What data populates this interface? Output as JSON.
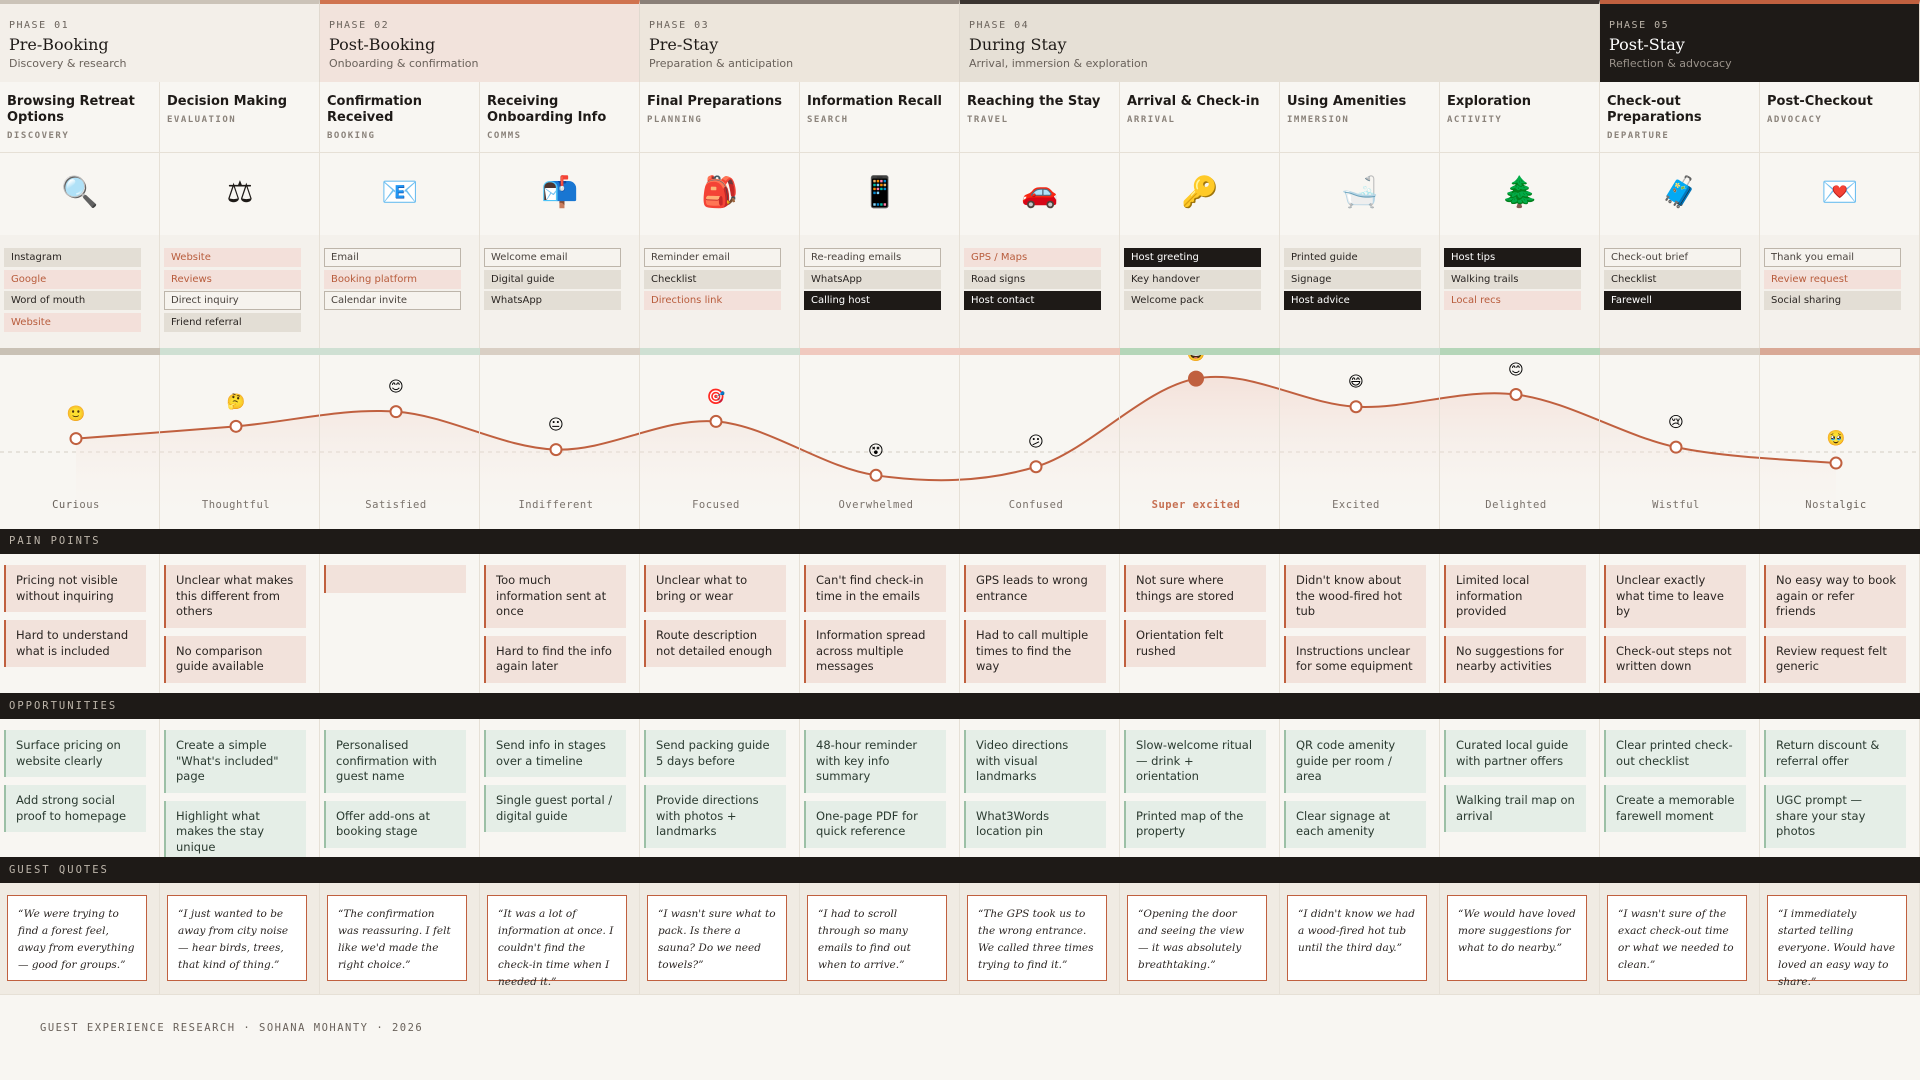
{
  "phases": [
    {
      "number": "PHASE 01",
      "title": "Pre-Booking",
      "subtitle": "Discovery & research",
      "bg": "#f3efe9",
      "accent": "#cbc3b8",
      "theme": "light",
      "steps": [
        {
          "title": "Browsing Retreat Options",
          "tag": "DISCOVERY",
          "icon": "🔍",
          "strip": "#c9c1b5",
          "touchpoints": [
            {
              "label": "Instagram",
              "style": "neutral"
            },
            {
              "label": "Google",
              "style": "accent"
            },
            {
              "label": "Word of mouth",
              "style": "neutral"
            },
            {
              "label": "Website",
              "style": "accent"
            }
          ],
          "emotion": {
            "emoji": "🙂",
            "label": "Curious",
            "level": 42,
            "highlight": false
          },
          "pain_points": [
            "Pricing not visible without inquiring",
            "Hard to understand what is included"
          ],
          "opportunities": [
            "Surface pricing on website clearly",
            "Add strong social proof to homepage"
          ],
          "quote": "“We were trying to find a forest feel, away from everything — good for groups.”"
        },
        {
          "title": "Decision Making",
          "tag": "EVALUATION",
          "icon": "⚖",
          "strip": "#cfe0d3",
          "touchpoints": [
            {
              "label": "Website",
              "style": "accent"
            },
            {
              "label": "Reviews",
              "style": "accent"
            },
            {
              "label": "Direct inquiry",
              "style": "outline"
            },
            {
              "label": "Friend referral",
              "style": "neutral"
            }
          ],
          "emotion": {
            "emoji": "🤔",
            "label": "Thoughtful",
            "level": 52,
            "highlight": false
          },
          "pain_points": [
            "Unclear what makes this different from others",
            "No comparison guide available"
          ],
          "opportunities": [
            "Create a simple \"What's included\" page",
            "Highlight what makes the stay unique"
          ],
          "quote": "“I just wanted to be away from city noise — hear birds, trees, that kind of thing.”"
        }
      ]
    },
    {
      "number": "PHASE 02",
      "title": "Post-Booking",
      "subtitle": "Onboarding & confirmation",
      "bg": "#f2e3dc",
      "accent": "#d0734f",
      "theme": "light",
      "steps": [
        {
          "title": "Confirmation Received",
          "tag": "BOOKING",
          "icon": "📧",
          "strip": "#cfe0d3",
          "touchpoints": [
            {
              "label": "Email",
              "style": "outline"
            },
            {
              "label": "Booking platform",
              "style": "accent"
            },
            {
              "label": "Calendar invite",
              "style": "outline"
            }
          ],
          "emotion": {
            "emoji": "😊",
            "label": "Satisfied",
            "level": 64,
            "highlight": false
          },
          "pain_points": [],
          "opportunities": [
            "Personalised confirmation with guest name",
            "Offer add-ons at booking stage"
          ],
          "quote": "“The confirmation was reassuring. I felt like we'd made the right choice.”"
        },
        {
          "title": "Receiving Onboarding Info",
          "tag": "COMMS",
          "icon": "📬",
          "strip": "#d9cfc4",
          "touchpoints": [
            {
              "label": "Welcome email",
              "style": "outline"
            },
            {
              "label": "Digital guide",
              "style": "neutral"
            },
            {
              "label": "WhatsApp",
              "style": "neutral"
            }
          ],
          "emotion": {
            "emoji": "😐",
            "label": "Indifferent",
            "level": 33,
            "highlight": false
          },
          "pain_points": [
            "Too much information sent at once",
            "Hard to find the info again later"
          ],
          "opportunities": [
            "Send info in stages over a timeline",
            "Single guest portal / digital guide"
          ],
          "quote": "“It was a lot of information at once. I couldn't find the check-in time when I needed it.”"
        }
      ]
    },
    {
      "number": "PHASE 03",
      "title": "Pre-Stay",
      "subtitle": "Preparation & anticipation",
      "bg": "#ede6dc",
      "accent": "#8a8078",
      "theme": "light",
      "steps": [
        {
          "title": "Final Preparations",
          "tag": "PLANNING",
          "icon": "🎒",
          "strip": "#cfe0d3",
          "touchpoints": [
            {
              "label": "Reminder email",
              "style": "outline"
            },
            {
              "label": "Checklist",
              "style": "neutral"
            },
            {
              "label": "Directions link",
              "style": "accent"
            }
          ],
          "emotion": {
            "emoji": "🎯",
            "label": "Focused",
            "level": 56,
            "highlight": false
          },
          "pain_points": [
            "Unclear what to bring or wear",
            "Route description not detailed enough"
          ],
          "opportunities": [
            "Send packing guide 5 days before",
            "Provide directions with photos + landmarks"
          ],
          "quote": "“I wasn't sure what to pack. Is there a sauna? Do we need towels?”"
        },
        {
          "title": "Information Recall",
          "tag": "SEARCH",
          "icon": "📱",
          "strip": "#f0c9bf",
          "touchpoints": [
            {
              "label": "Re-reading emails",
              "style": "outline"
            },
            {
              "label": "WhatsApp",
              "style": "neutral"
            },
            {
              "label": "Calling host",
              "style": "dark"
            }
          ],
          "emotion": {
            "emoji": "😵",
            "label": "Overwhelmed",
            "level": 12,
            "highlight": false
          },
          "pain_points": [
            "Can't find check-in time in the emails",
            "Information spread across multiple messages"
          ],
          "opportunities": [
            "48-hour reminder with key info summary",
            "One-page PDF for quick reference"
          ],
          "quote": "“I had to scroll through so many emails to find out when to arrive.”"
        }
      ]
    },
    {
      "number": "PHASE 04",
      "title": "During Stay",
      "subtitle": "Arrival, immersion & exploration",
      "bg": "#e6e0d6",
      "accent": "#3a3430",
      "theme": "light",
      "steps": [
        {
          "title": "Reaching the Stay",
          "tag": "TRAVEL",
          "icon": "🚗",
          "strip": "#edc6b9",
          "touchpoints": [
            {
              "label": "GPS / Maps",
              "style": "accent"
            },
            {
              "label": "Road signs",
              "style": "neutral"
            },
            {
              "label": "Host contact",
              "style": "dark"
            }
          ],
          "emotion": {
            "emoji": "😕",
            "label": "Confused",
            "level": 19,
            "highlight": false
          },
          "pain_points": [
            "GPS leads to wrong entrance",
            "Had to call multiple times to find the way"
          ],
          "opportunities": [
            "Video directions with visual landmarks",
            "What3Words location pin"
          ],
          "quote": "“The GPS took us to the wrong entrance. We called three times trying to find it.”"
        },
        {
          "title": "Arrival & Check-in",
          "tag": "ARRIVAL",
          "icon": "🔑",
          "strip": "#b5d6b9",
          "touchpoints": [
            {
              "label": "Host greeting",
              "style": "dark"
            },
            {
              "label": "Key handover",
              "style": "neutral"
            },
            {
              "label": "Welcome pack",
              "style": "neutral"
            }
          ],
          "emotion": {
            "emoji": "🤩",
            "label": "Super excited",
            "level": 91,
            "highlight": true
          },
          "pain_points": [
            "Not sure where things are stored",
            "Orientation felt rushed"
          ],
          "opportunities": [
            "Slow-welcome ritual — drink + orientation",
            "Printed map of the property"
          ],
          "quote": "“Opening the door and seeing the view — it was absolutely breathtaking.”"
        },
        {
          "title": "Using Amenities",
          "tag": "IMMERSION",
          "icon": "🛁",
          "strip": "#cfe0d3",
          "touchpoints": [
            {
              "label": "Printed guide",
              "style": "neutral"
            },
            {
              "label": "Signage",
              "style": "neutral"
            },
            {
              "label": "Host advice",
              "style": "dark"
            }
          ],
          "emotion": {
            "emoji": "😄",
            "label": "Excited",
            "level": 68,
            "highlight": false
          },
          "pain_points": [
            "Didn't know about the wood-fired hot tub",
            "Instructions unclear for some equipment"
          ],
          "opportunities": [
            "QR code amenity guide per room / area",
            "Clear signage at each amenity"
          ],
          "quote": "“I didn't know we had a wood-fired hot tub until the third day.”"
        },
        {
          "title": "Exploration",
          "tag": "ACTIVITY",
          "icon": "🌲",
          "strip": "#b5d6b9",
          "touchpoints": [
            {
              "label": "Host tips",
              "style": "dark"
            },
            {
              "label": "Walking trails",
              "style": "neutral"
            },
            {
              "label": "Local recs",
              "style": "accent"
            }
          ],
          "emotion": {
            "emoji": "😊",
            "label": "Delighted",
            "level": 78,
            "highlight": false
          },
          "pain_points": [
            "Limited local information provided",
            "No suggestions for nearby activities"
          ],
          "opportunities": [
            "Curated local guide with partner offers",
            "Walking trail map on arrival"
          ],
          "quote": "“We would have loved more suggestions for what to do nearby.”"
        }
      ]
    },
    {
      "number": "PHASE 05",
      "title": "Post-Stay",
      "subtitle": "Reflection & advocacy",
      "bg": "#1e1a17",
      "accent": "#c0603f",
      "theme": "dark",
      "steps": [
        {
          "title": "Check-out Preparations",
          "tag": "DEPARTURE",
          "icon": "🧳",
          "strip": "#d9cfc4",
          "touchpoints": [
            {
              "label": "Check-out brief",
              "style": "outline"
            },
            {
              "label": "Checklist",
              "style": "neutral"
            },
            {
              "label": "Farewell",
              "style": "dark"
            }
          ],
          "emotion": {
            "emoji": "😢",
            "label": "Wistful",
            "level": 35,
            "highlight": false
          },
          "pain_points": [
            "Unclear exactly what time to leave by",
            "Check-out steps not written down"
          ],
          "opportunities": [
            "Clear printed check-out checklist",
            "Create a memorable farewell moment"
          ],
          "quote": "“I wasn't sure of the exact check-out time or what we needed to clean.”"
        },
        {
          "title": "Post-Checkout",
          "tag": "ADVOCACY",
          "icon": "💌",
          "strip": "#d9a996",
          "touchpoints": [
            {
              "label": "Thank you email",
              "style": "outline"
            },
            {
              "label": "Review request",
              "style": "accent"
            },
            {
              "label": "Social sharing",
              "style": "neutral"
            }
          ],
          "emotion": {
            "emoji": "🥹",
            "label": "Nostalgic",
            "level": 22,
            "highlight": false
          },
          "pain_points": [
            "No easy way to book again or refer friends",
            "Review request felt generic"
          ],
          "opportunities": [
            "Return discount & referral offer",
            "UGC prompt — share your stay photos"
          ],
          "quote": "“I immediately started telling everyone. Would have loved an easy way to share.”"
        }
      ]
    }
  ],
  "sections": {
    "pain_points": "PAIN POINTS",
    "opportunities": "OPPORTUNITIES",
    "quotes": "GUEST QUOTES"
  },
  "footer": "GUEST EXPERIENCE RESEARCH · SOHANA MOHANTY · 2026"
}
